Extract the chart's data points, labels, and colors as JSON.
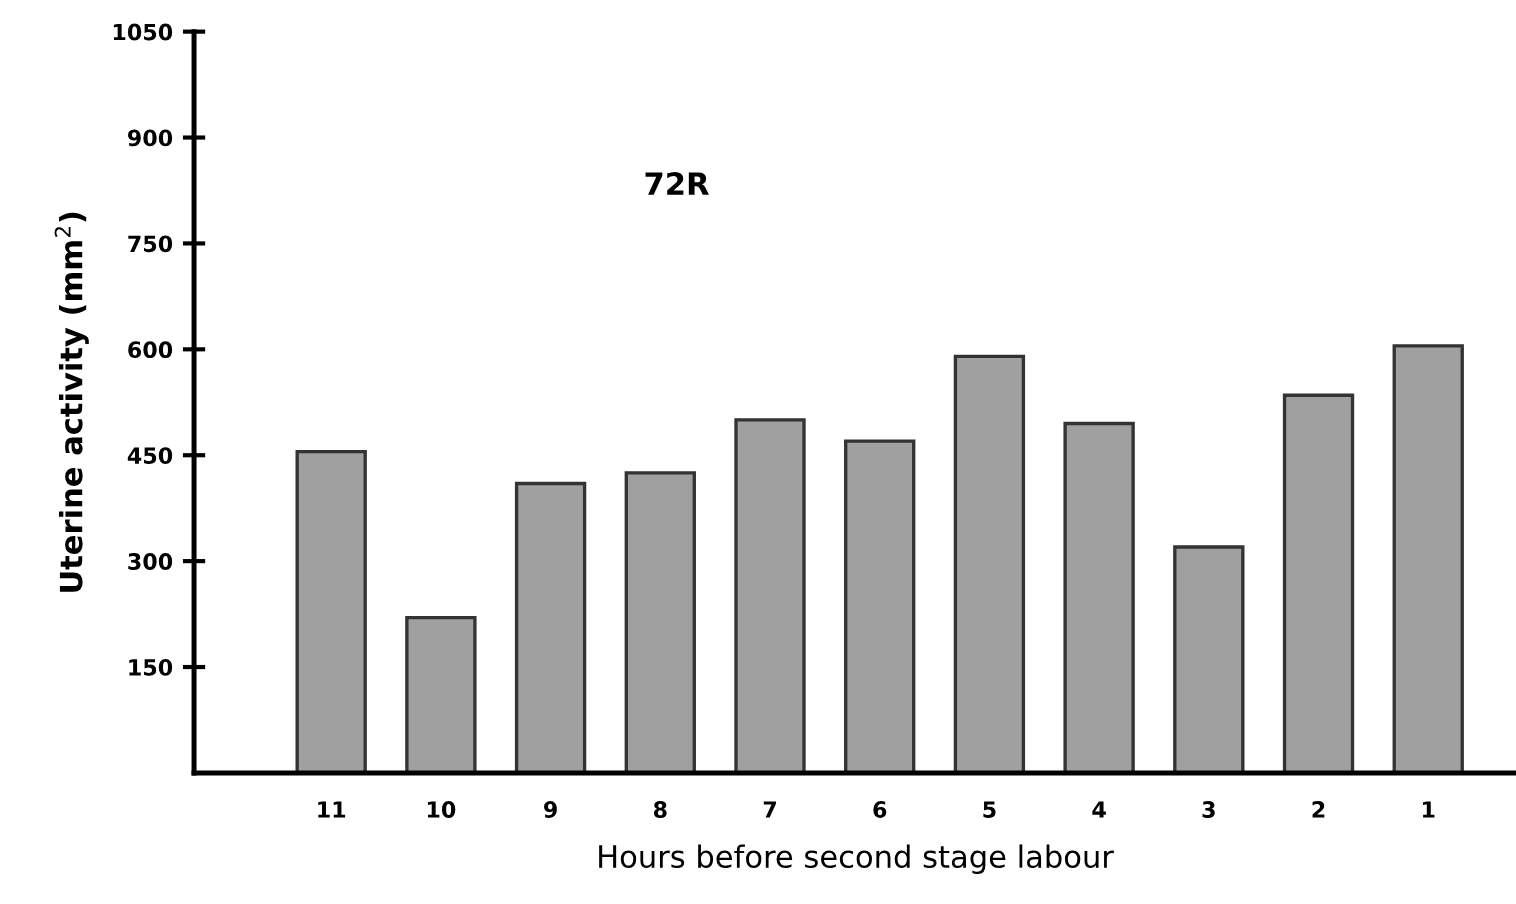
{
  "chart_data": {
    "type": "bar",
    "xlabel": "Hours before second stage labour",
    "ylabel": "Uterine activity (mm$^{2}$)",
    "annotations": [
      "72R"
    ],
    "categories": [
      "11",
      "10",
      "9",
      "8",
      "7",
      "6",
      "5",
      "4",
      "3",
      "2",
      "1"
    ],
    "values": [
      455,
      220,
      410,
      425,
      500,
      470,
      590,
      495,
      320,
      535,
      605
    ],
    "color": "#a0a0a0",
    "ylim": [
      0,
      1050
    ],
    "yticks": [
      150,
      300,
      450,
      600,
      750,
      900,
      1050
    ],
    "grid": false,
    "legend": false
  }
}
